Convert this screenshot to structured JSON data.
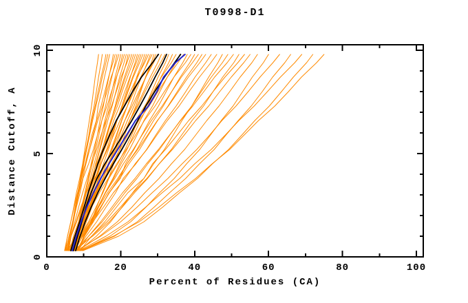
{
  "chart_data": {
    "type": "line",
    "title": "T0998-D1",
    "xlabel": "Percent of Residues (CA)",
    "ylabel": "Distance Cutoff, A",
    "xlim": [
      0,
      101.9
    ],
    "ylim": [
      0,
      10.27
    ],
    "grid": false,
    "legend": "none",
    "x_axis": {
      "major": [
        0,
        20,
        40,
        60,
        80,
        100
      ],
      "labels": [
        "0",
        "20",
        "40",
        "60",
        "80",
        "100"
      ],
      "minor": [
        10,
        30,
        50,
        70,
        90
      ]
    },
    "y_axis": {
      "major": [
        0,
        5,
        10
      ],
      "labels": [
        "0",
        "5",
        "10"
      ],
      "minor": [
        1,
        2,
        3,
        4,
        6,
        7,
        8,
        9
      ]
    },
    "y_grid": [
      0.3,
      1.0,
      1.7,
      2.4,
      3.1,
      3.8,
      4.5,
      5.2,
      5.9,
      6.6,
      7.3,
      8.0,
      8.7,
      9.4,
      9.8
    ],
    "series": [
      {
        "name": "server-models-orange",
        "color": "#ff8a00",
        "width": 1,
        "lines": [
          [
            5.0,
            6.1,
            7.0,
            7.7,
            8.4,
            9.1,
            9.7,
            10.3,
            10.9,
            11.5,
            12.1,
            12.6,
            13.1,
            13.7,
            14.0
          ],
          [
            5.5,
            6.4,
            7.2,
            7.9,
            8.6,
            9.4,
            10.0,
            10.8,
            11.4,
            12.0,
            12.8,
            13.4,
            14.0,
            14.7,
            15.0
          ],
          [
            4.8,
            5.6,
            6.5,
            7.3,
            8.0,
            8.9,
            9.7,
            10.6,
            11.4,
            12.2,
            13.1,
            13.9,
            14.7,
            15.6,
            16.0
          ],
          [
            6.0,
            6.4,
            7.1,
            7.7,
            8.4,
            9.2,
            9.9,
            10.8,
            11.6,
            12.4,
            13.3,
            14.2,
            15.0,
            16.0,
            16.5
          ],
          [
            5.2,
            6.0,
            7.0,
            7.8,
            8.6,
            9.3,
            10.4,
            11.3,
            12.2,
            13.4,
            13.9,
            14.8,
            15.6,
            16.5,
            17.0
          ],
          [
            6.5,
            7.6,
            8.6,
            9.4,
            10.3,
            11.2,
            12.0,
            12.9,
            13.7,
            14.4,
            15.3,
            16.0,
            16.8,
            17.6,
            18.0
          ],
          [
            5.8,
            6.3,
            7.1,
            7.9,
            8.7,
            9.7,
            10.6,
            11.6,
            12.5,
            13.5,
            14.7,
            15.7,
            16.7,
            17.9,
            18.5
          ],
          [
            7.0,
            7.8,
            8.8,
            9.6,
            10.5,
            11.4,
            12.3,
            13.2,
            14.1,
            14.9,
            15.9,
            16.7,
            17.6,
            18.5,
            19.0
          ],
          [
            5.0,
            5.6,
            6.5,
            7.4,
            8.3,
            9.4,
            10.4,
            11.6,
            12.7,
            13.8,
            15.1,
            16.3,
            17.4,
            18.8,
            19.5
          ],
          [
            6.2,
            7.5,
            8.7,
            9.7,
            10.7,
            11.8,
            12.8,
            13.9,
            14.8,
            15.7,
            16.7,
            17.6,
            18.5,
            19.5,
            20.0
          ],
          [
            7.5,
            8.4,
            9.5,
            10.4,
            11.3,
            12.3,
            13.2,
            14.3,
            15.2,
            16.1,
            17.1,
            18.0,
            18.9,
            20.0,
            20.5
          ],
          [
            5.5,
            6.1,
            7.1,
            8.0,
            9.0,
            9.8,
            11.3,
            12.6,
            13.7,
            14.9,
            16.3,
            17.5,
            18.8,
            20.3,
            21.0
          ],
          [
            6.8,
            7.8,
            9.0,
            10.0,
            11.1,
            12.2,
            13.3,
            14.4,
            15.5,
            16.5,
            17.7,
            18.7,
            19.7,
            20.9,
            21.5
          ],
          [
            7.2,
            8.6,
            9.9,
            11.0,
            12.1,
            13.2,
            14.3,
            15.4,
            16.4,
            17.4,
            18.5,
            19.4,
            20.4,
            21.5,
            22.0
          ],
          [
            5.9,
            6.6,
            7.6,
            8.6,
            9.7,
            10.9,
            12.1,
            13.5,
            14.7,
            16.0,
            17.5,
            18.8,
            20.1,
            21.7,
            22.5
          ],
          [
            6.4,
            7.6,
            8.9,
            10.1,
            11.2,
            12.5,
            13.7,
            15.0,
            16.2,
            17.4,
            18.7,
            19.8,
            21.0,
            22.3,
            23.0
          ],
          [
            7.8,
            8.4,
            9.4,
            10.4,
            11.4,
            12.6,
            13.7,
            15.0,
            16.1,
            17.3,
            18.7,
            20.0,
            21.3,
            22.8,
            23.5
          ],
          [
            5.3,
            6.6,
            8.1,
            9.4,
            10.7,
            12.8,
            13.5,
            15.0,
            16.3,
            17.6,
            19.1,
            20.4,
            21.8,
            23.3,
            24.0
          ],
          [
            6.9,
            8.5,
            10.1,
            11.4,
            12.7,
            14.1,
            15.3,
            16.7,
            17.9,
            19.0,
            20.3,
            21.5,
            22.6,
            23.9,
            24.5
          ],
          [
            7.4,
            8.1,
            9.2,
            10.3,
            11.4,
            12.7,
            14.0,
            15.4,
            16.8,
            18.1,
            19.7,
            21.1,
            22.5,
            24.2,
            25.0
          ],
          [
            6.1,
            7.5,
            9.0,
            10.4,
            11.7,
            13.3,
            14.6,
            16.2,
            17.5,
            18.9,
            20.5,
            21.8,
            23.2,
            24.7,
            25.5
          ],
          [
            8.0,
            8.7,
            9.9,
            10.9,
            12.1,
            13.5,
            14.7,
            16.2,
            17.6,
            18.9,
            20.6,
            22.0,
            23.4,
            25.1,
            26.0
          ],
          [
            6.6,
            8.4,
            10.2,
            11.7,
            13.1,
            14.7,
            16.1,
            17.6,
            19.0,
            20.3,
            21.8,
            23.1,
            24.3,
            25.8,
            26.5
          ],
          [
            7.1,
            8.5,
            10.1,
            11.5,
            12.9,
            13.9,
            15.9,
            17.4,
            18.8,
            20.2,
            21.8,
            23.2,
            24.6,
            26.2,
            27.0
          ],
          [
            5.6,
            6.5,
            7.9,
            9.2,
            10.6,
            12.2,
            13.8,
            15.6,
            17.2,
            18.9,
            20.9,
            22.6,
            24.4,
            26.5,
            27.5
          ],
          [
            7.7,
            9.1,
            10.7,
            12.2,
            13.6,
            15.2,
            16.6,
            18.3,
            19.7,
            21.1,
            22.7,
            24.1,
            25.6,
            27.2,
            28.0
          ],
          [
            6.3,
            7.2,
            8.6,
            9.9,
            11.3,
            13.0,
            14.6,
            16.4,
            18.1,
            19.8,
            21.8,
            23.6,
            25.4,
            27.4,
            28.5
          ],
          [
            8.2,
            10.1,
            12.0,
            13.5,
            15.0,
            16.7,
            18.1,
            19.7,
            21.1,
            22.5,
            24.1,
            25.4,
            26.7,
            28.3,
            29.0
          ],
          [
            6.8,
            8.4,
            10.2,
            11.8,
            13.4,
            15.9,
            16.8,
            18.6,
            20.2,
            21.8,
            23.6,
            25.2,
            26.8,
            28.6,
            29.5
          ],
          [
            7.3,
            8.2,
            9.6,
            11.0,
            12.4,
            14.2,
            15.8,
            17.7,
            19.4,
            21.1,
            23.1,
            24.9,
            26.8,
            28.9,
            30.0
          ],
          [
            5.8,
            7.6,
            9.6,
            11.3,
            13.1,
            15.1,
            16.9,
            18.9,
            20.7,
            22.4,
            24.4,
            26.2,
            28.0,
            30.0,
            31.0
          ],
          [
            7.9,
            8.9,
            10.4,
            11.8,
            13.4,
            15.2,
            16.9,
            18.9,
            20.7,
            22.5,
            24.7,
            26.6,
            28.6,
            30.8,
            32.0
          ],
          [
            6.5,
            8.9,
            11.3,
            13.3,
            15.2,
            16.8,
            19.2,
            21.2,
            23.0,
            24.7,
            26.7,
            28.4,
            30.1,
            32.1,
            33.0
          ],
          [
            8.4,
            10.2,
            12.2,
            14.0,
            15.8,
            17.9,
            19.7,
            21.7,
            23.5,
            25.3,
            27.3,
            29.1,
            30.9,
            33.0,
            34.0
          ],
          [
            7.0,
            8.2,
            9.9,
            11.6,
            13.3,
            15.5,
            17.5,
            19.8,
            21.9,
            24.0,
            26.5,
            28.8,
            31.0,
            33.7,
            35.0
          ],
          [
            7.6,
            9.6,
            11.9,
            13.8,
            15.8,
            18.1,
            20.1,
            22.4,
            24.4,
            26.3,
            28.6,
            30.6,
            32.6,
            34.9,
            36.0
          ],
          [
            6.2,
            7.5,
            9.4,
            11.2,
            13.2,
            15.5,
            17.7,
            20.2,
            22.6,
            24.9,
            27.7,
            30.1,
            32.6,
            35.5,
            37.0
          ],
          [
            8.1,
            10.2,
            12.6,
            14.7,
            16.8,
            19.9,
            21.3,
            23.6,
            25.7,
            27.8,
            30.2,
            32.3,
            34.4,
            36.8,
            38.0
          ],
          [
            6.9,
            8.2,
            10.2,
            12.1,
            14.2,
            16.6,
            18.9,
            21.5,
            24.0,
            26.4,
            29.3,
            31.8,
            34.4,
            37.5,
            39.0
          ],
          [
            7.4,
            9.7,
            12.3,
            14.6,
            16.9,
            19.5,
            21.7,
            24.4,
            26.6,
            28.9,
            31.5,
            33.8,
            36.1,
            38.7,
            40.0
          ],
          [
            8.6,
            9.9,
            11.9,
            13.9,
            15.9,
            18.4,
            20.7,
            23.4,
            25.8,
            28.3,
            31.2,
            33.8,
            36.4,
            39.4,
            41.0
          ],
          [
            6.7,
            9.2,
            12.0,
            14.5,
            16.9,
            19.8,
            22.2,
            25.1,
            27.5,
            30.0,
            32.8,
            35.3,
            37.8,
            40.6,
            42.0
          ],
          [
            7.2,
            9.1,
            11.6,
            14.0,
            16.4,
            19.2,
            21.7,
            24.6,
            27.3,
            29.9,
            32.9,
            35.6,
            38.3,
            41.4,
            43.0
          ],
          [
            8.0,
            10.6,
            13.5,
            16.0,
            18.6,
            20.7,
            24.1,
            27.0,
            29.5,
            32.1,
            35.0,
            37.6,
            40.1,
            43.0,
            44.5
          ],
          [
            6.6,
            9.4,
            12.5,
            15.3,
            18.0,
            21.2,
            23.9,
            27.1,
            29.8,
            32.6,
            35.8,
            38.5,
            41.3,
            44.4,
            46.0
          ],
          [
            8.8,
            13.4,
            17.3,
            20.3,
            23.2,
            26.3,
            28.9,
            31.8,
            34.2,
            36.6,
            39.2,
            41.5,
            43.8,
            46.3,
            47.5
          ],
          [
            7.5,
            11.3,
            15.0,
            18.1,
            21.1,
            24.4,
            27.3,
            30.5,
            33.3,
            36.1,
            39.2,
            41.8,
            44.5,
            47.5,
            49.0
          ],
          [
            8.3,
            11.3,
            14.6,
            17.6,
            20.5,
            23.9,
            26.9,
            30.2,
            33.2,
            36.2,
            39.5,
            42.5,
            45.4,
            48.8,
            50.5
          ],
          [
            7.0,
            12.4,
            16.9,
            20.4,
            23.7,
            27.3,
            30.4,
            33.7,
            36.5,
            39.3,
            42.4,
            45.0,
            47.6,
            50.6,
            52.0
          ],
          [
            9.0,
            12.1,
            15.7,
            18.8,
            21.9,
            26.3,
            28.6,
            32.1,
            35.3,
            38.4,
            41.9,
            45.0,
            48.2,
            51.7,
            53.5
          ],
          [
            7.8,
            12.1,
            16.3,
            19.9,
            23.3,
            27.1,
            30.4,
            34.0,
            37.2,
            40.3,
            43.8,
            46.8,
            49.9,
            53.3,
            55.0
          ],
          [
            8.5,
            14.3,
            19.1,
            23.0,
            26.5,
            30.4,
            33.7,
            37.3,
            40.3,
            43.3,
            46.6,
            49.5,
            52.3,
            55.5,
            57.0
          ],
          [
            9.2,
            17.1,
            22.7,
            26.8,
            30.5,
            34.5,
            37.8,
            41.4,
            44.3,
            47.2,
            50.4,
            53.0,
            55.6,
            58.6,
            60.0
          ],
          [
            8.0,
            14.6,
            20.0,
            24.4,
            28.5,
            32.8,
            36.6,
            40.6,
            44.1,
            47.4,
            51.2,
            54.5,
            57.7,
            61.2,
            63.0
          ],
          [
            9.5,
            18.3,
            24.5,
            29.0,
            33.2,
            37.6,
            41.3,
            45.3,
            48.5,
            51.8,
            55.3,
            58.3,
            61.1,
            64.4,
            66.0
          ],
          [
            8.8,
            16.0,
            22.0,
            26.7,
            31.2,
            36.0,
            40.0,
            44.5,
            48.3,
            52.0,
            56.1,
            59.7,
            63.2,
            67.1,
            69.0
          ],
          [
            9.8,
            19.4,
            26.3,
            31.3,
            35.9,
            40.8,
            44.8,
            49.2,
            52.8,
            56.3,
            60.2,
            63.5,
            66.7,
            70.3,
            72.0
          ],
          [
            9.0,
            18.0,
            25.0,
            30.3,
            35.1,
            40.3,
            44.7,
            49.5,
            53.4,
            57.3,
            61.7,
            65.4,
            68.9,
            73.0,
            75.0
          ]
        ]
      },
      {
        "name": "highlighted-models-black",
        "color": "#000000",
        "width": 1.8,
        "lines": [
          [
            6.5,
            7.6,
            8.9,
            10.1,
            11.2,
            12.5,
            13.8,
            15.3,
            17.0,
            18.8,
            21.0,
            23.2,
            25.6,
            28.6,
            30.2
          ],
          [
            7.2,
            8.3,
            9.5,
            10.6,
            12.0,
            13.6,
            15.7,
            18.2,
            20.6,
            23.0,
            25.2,
            27.3,
            29.3,
            31.4,
            32.4
          ],
          [
            7.8,
            9.0,
            10.4,
            12.0,
            13.8,
            15.8,
            18.0,
            20.3,
            22.5,
            24.6,
            26.8,
            29.2,
            31.8,
            34.6,
            36.2
          ]
        ]
      },
      {
        "name": "highlighted-model-blue",
        "color": "#2222cc",
        "width": 2,
        "lines": [
          [
            6.9,
            8.0,
            9.3,
            10.8,
            12.6,
            14.6,
            16.8,
            19.2,
            21.6,
            24.0,
            27.5,
            29.8,
            31.6,
            34.8,
            37.4
          ]
        ]
      }
    ]
  }
}
